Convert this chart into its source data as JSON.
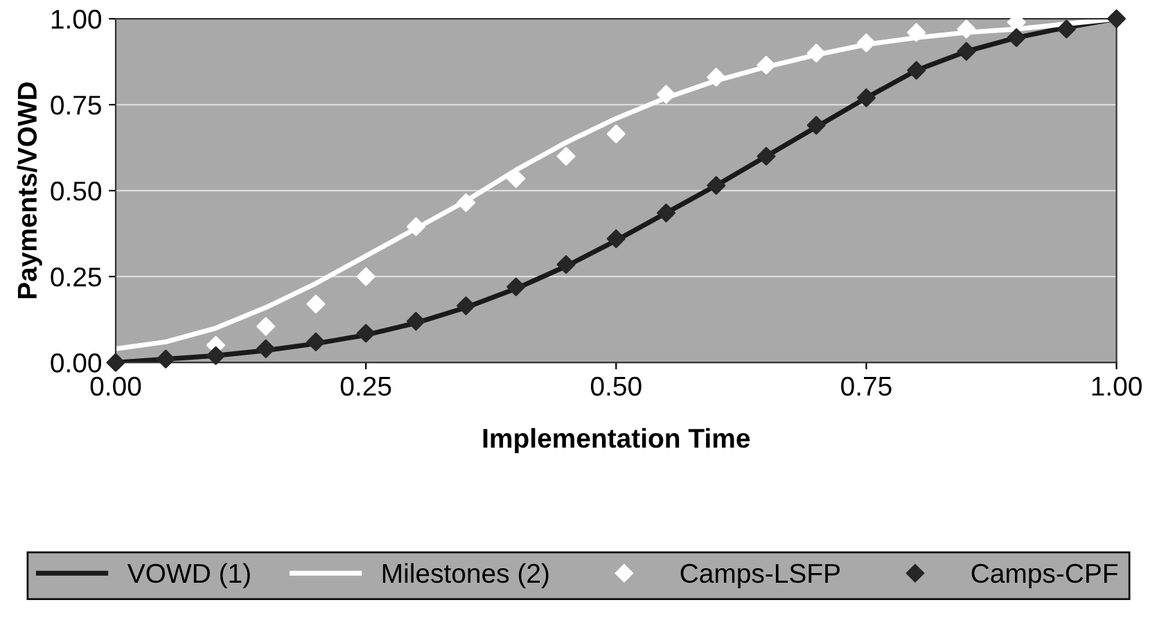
{
  "chart_data": {
    "type": "line",
    "xlabel": "Implementation Time",
    "ylabel": "Payments/VOWD",
    "x": [
      0,
      0.05,
      0.1,
      0.15,
      0.2,
      0.25,
      0.3,
      0.35,
      0.4,
      0.45,
      0.5,
      0.55,
      0.6,
      0.65,
      0.7,
      0.75,
      0.8,
      0.85,
      0.9,
      0.95,
      1
    ],
    "series": [
      {
        "name": "VOWD (1)",
        "color": "#1a1a1a",
        "values": [
          0,
          0.01,
          0.02,
          0.035,
          0.055,
          0.08,
          0.115,
          0.16,
          0.215,
          0.28,
          0.355,
          0.435,
          0.515,
          0.6,
          0.685,
          0.77,
          0.85,
          0.905,
          0.945,
          0.975,
          1
        ]
      },
      {
        "name": "Milestones (2)",
        "color": "#ffffff",
        "values": [
          0.04,
          0.06,
          0.1,
          0.16,
          0.23,
          0.31,
          0.39,
          0.47,
          0.56,
          0.64,
          0.71,
          0.77,
          0.82,
          0.86,
          0.895,
          0.925,
          0.945,
          0.96,
          0.97,
          0.985,
          1
        ]
      },
      {
        "name": "Camps-LSFP",
        "color": "#ffffff",
        "type": "scatter",
        "marker": "diamond",
        "values": [
          null,
          null,
          0.05,
          0.105,
          0.17,
          0.25,
          0.395,
          0.465,
          0.535,
          0.6,
          0.665,
          0.78,
          0.83,
          0.865,
          0.9,
          0.93,
          0.96,
          0.97,
          0.99,
          null,
          null
        ]
      },
      {
        "name": "Camps-CPF",
        "color": "#262626",
        "type": "scatter",
        "marker": "diamond",
        "values": [
          0,
          0.01,
          0.02,
          0.04,
          0.06,
          0.085,
          0.12,
          0.165,
          0.22,
          0.285,
          0.36,
          0.435,
          0.515,
          0.6,
          0.69,
          0.77,
          0.85,
          0.905,
          0.945,
          0.97,
          1
        ]
      }
    ],
    "xlim": [
      0,
      1
    ],
    "ylim": [
      0,
      1
    ],
    "xticks": [
      {
        "value": 0,
        "label": "0.00"
      },
      {
        "value": 0.25,
        "label": "0.25"
      },
      {
        "value": 0.5,
        "label": "0.50"
      },
      {
        "value": 0.75,
        "label": "0.75"
      },
      {
        "value": 1,
        "label": "1.00"
      }
    ],
    "yticks": [
      {
        "value": 0,
        "label": "0.00"
      },
      {
        "value": 0.25,
        "label": "0.25"
      },
      {
        "value": 0.5,
        "label": "0.50"
      },
      {
        "value": 0.75,
        "label": "0.75"
      },
      {
        "value": 1,
        "label": "1.00"
      }
    ],
    "grid": "y",
    "legend": "bottom"
  }
}
